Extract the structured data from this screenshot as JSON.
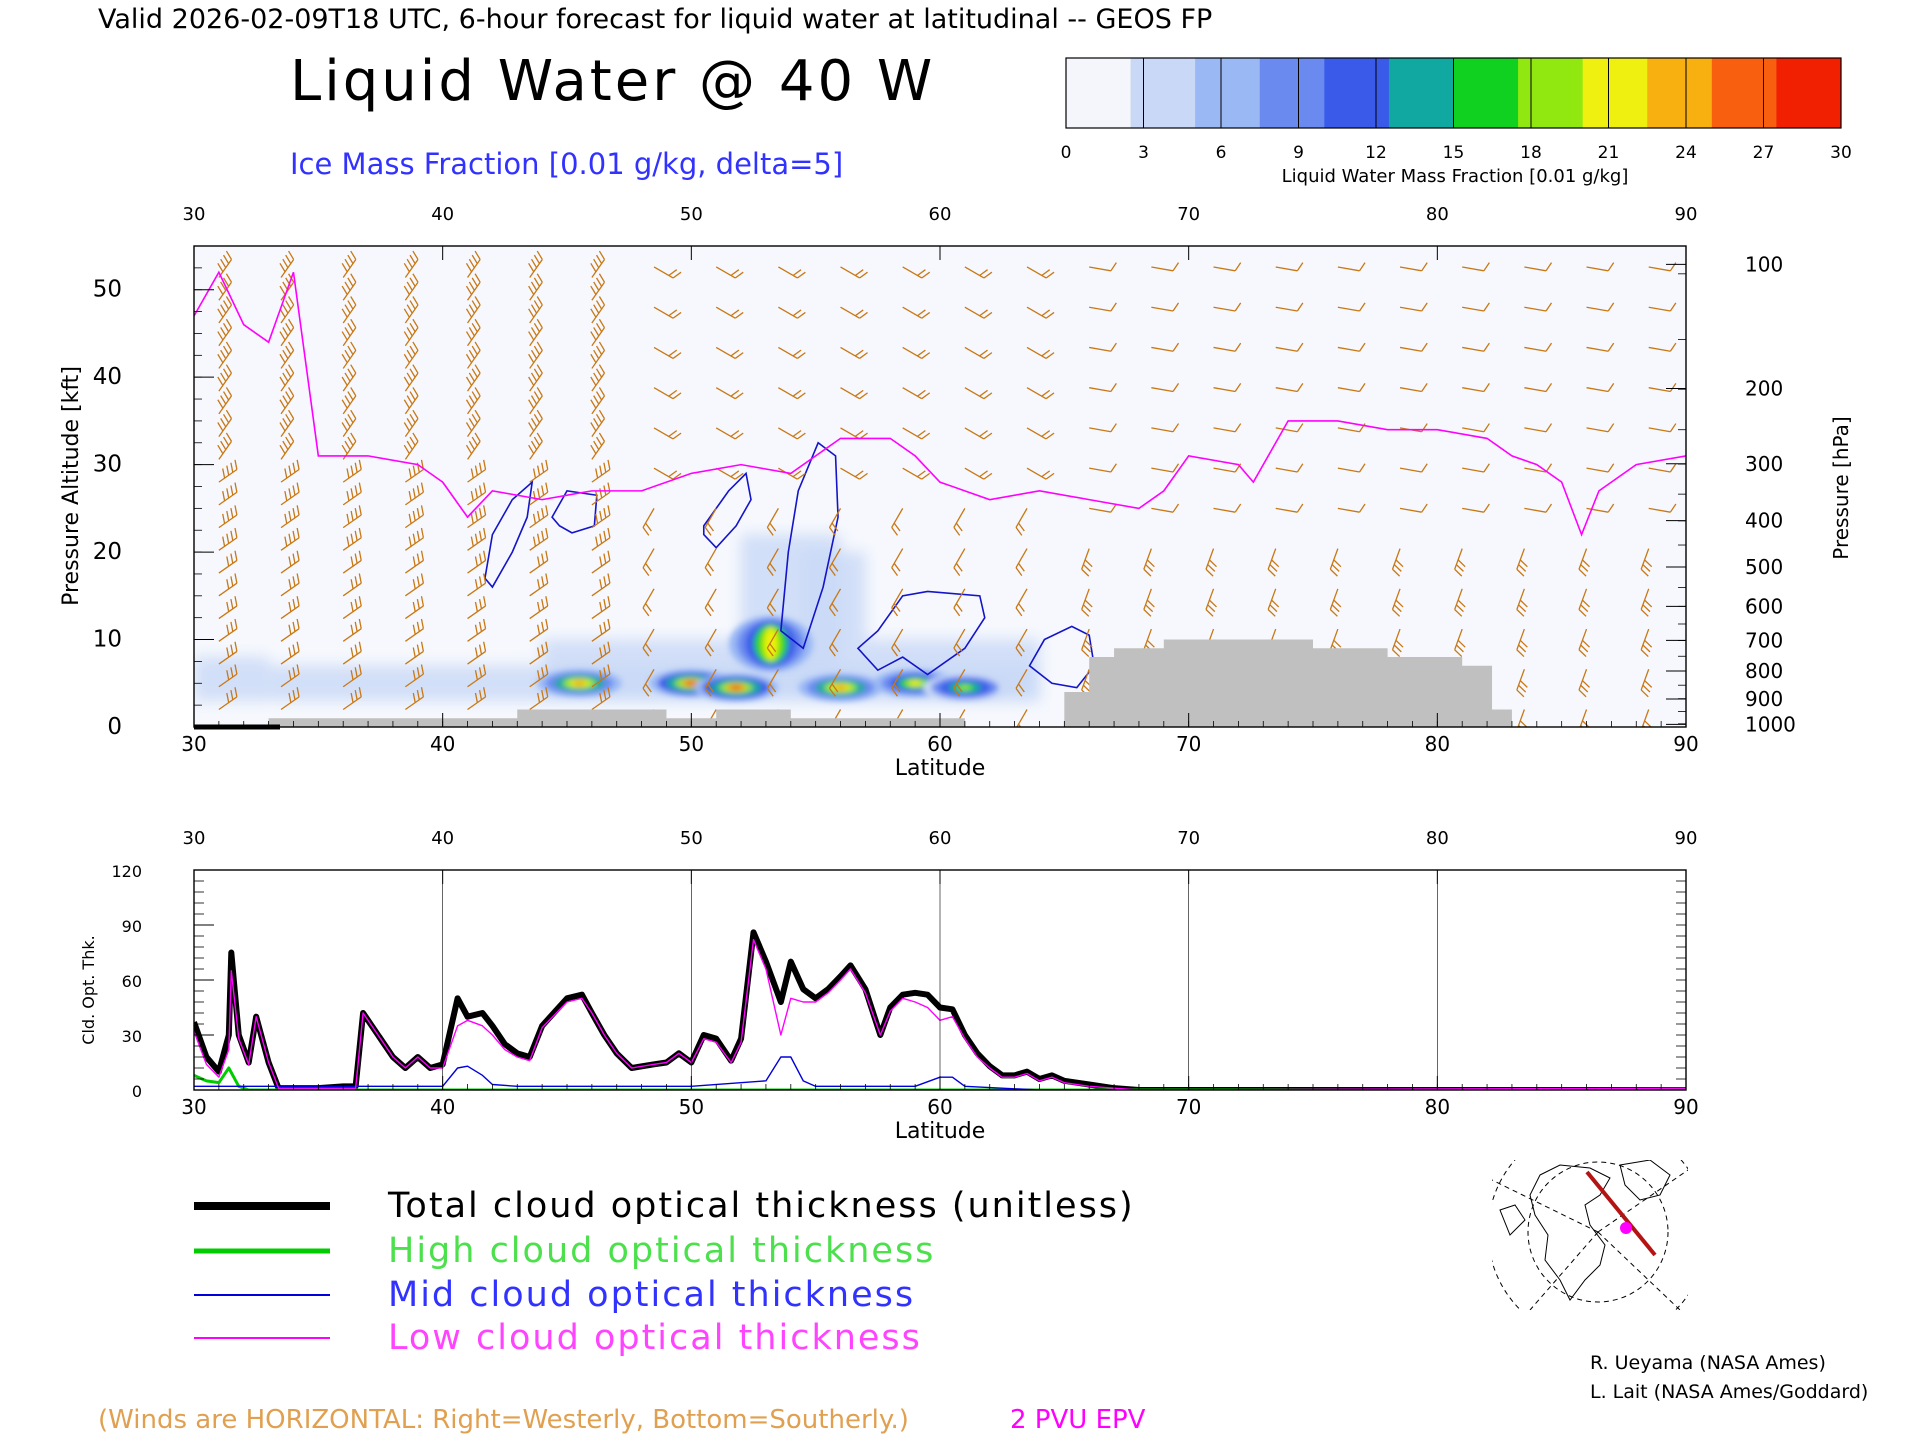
{
  "header": {
    "title": "Valid 2026-02-09T18 UTC, 6-hour forecast for liquid water at latitudinal -- GEOS FP",
    "main_title": "Liquid Water @ 40 W",
    "subtitle": "Ice Mass Fraction [0.01 g/kg, delta=5]"
  },
  "colorbar": {
    "ticks": [
      "0",
      "3",
      "6",
      "9",
      "12",
      "15",
      "18",
      "21",
      "24",
      "27",
      "30"
    ],
    "label": "Liquid Water Mass Fraction [0.01 g/kg]",
    "colors": [
      "#f4f6fc",
      "#c8d8f6",
      "#9ab8f4",
      "#6a8af0",
      "#3a5aea",
      "#10a8a0",
      "#10d020",
      "#90e810",
      "#f0f010",
      "#f8b010",
      "#f86010",
      "#f02000"
    ]
  },
  "chart_data": [
    {
      "type": "heatmap",
      "xlabel": "Latitude",
      "ylabel": "Pressure Altitude [kft]",
      "y2label": "Pressure [hPa]",
      "xlim": [
        30,
        90
      ],
      "ylim": [
        0,
        55
      ],
      "x_ticks": [
        "30",
        "40",
        "50",
        "60",
        "70",
        "80",
        "90"
      ],
      "y_ticks": [
        "0",
        "10",
        "20",
        "30",
        "40",
        "50"
      ],
      "y2_ticks": [
        "100",
        "200",
        "300",
        "400",
        "500",
        "600",
        "700",
        "800",
        "900",
        "1000"
      ],
      "y2_tick_kft": [
        52.9,
        38.7,
        30.1,
        23.6,
        18.3,
        13.8,
        9.9,
        6.4,
        3.2,
        0.3
      ],
      "high_liquid_water_blobs": [
        {
          "lat": 45.5,
          "kft": 5.0,
          "peak": 24
        },
        {
          "lat": 50.0,
          "kft": 5.0,
          "peak": 27
        },
        {
          "lat": 51.8,
          "kft": 4.5,
          "peak": 27
        },
        {
          "lat": 53.2,
          "kft": 9.5,
          "peak": 21
        },
        {
          "lat": 56.0,
          "kft": 4.5,
          "peak": 24
        },
        {
          "lat": 59.0,
          "kft": 5.0,
          "peak": 21
        },
        {
          "lat": 61.0,
          "kft": 4.5,
          "peak": 18
        }
      ],
      "epv_2pvu_kft": [
        [
          30,
          47
        ],
        [
          31,
          52
        ],
        [
          32,
          46
        ],
        [
          33,
          44
        ],
        [
          34,
          52
        ],
        [
          35,
          31
        ],
        [
          37,
          31
        ],
        [
          39,
          30
        ],
        [
          40,
          28
        ],
        [
          41,
          24
        ],
        [
          42,
          27
        ],
        [
          44,
          26
        ],
        [
          46,
          27
        ],
        [
          48,
          27
        ],
        [
          50,
          29
        ],
        [
          52,
          30
        ],
        [
          54,
          29
        ],
        [
          56,
          33
        ],
        [
          58,
          33
        ],
        [
          59,
          31
        ],
        [
          60,
          28
        ],
        [
          62,
          26
        ],
        [
          64,
          27
        ],
        [
          66,
          26
        ],
        [
          68,
          25
        ],
        [
          69,
          27
        ],
        [
          70,
          31
        ],
        [
          72,
          30
        ],
        [
          72.6,
          28
        ],
        [
          74,
          35
        ],
        [
          76,
          35
        ],
        [
          78,
          34
        ],
        [
          80,
          34
        ],
        [
          82,
          33
        ],
        [
          83,
          31
        ],
        [
          84,
          30
        ],
        [
          85,
          28
        ],
        [
          85.8,
          22
        ],
        [
          86.5,
          27
        ],
        [
          88,
          30
        ],
        [
          90,
          31
        ]
      ],
      "terrain_kft": [
        [
          30,
          0
        ],
        [
          33,
          0
        ],
        [
          33,
          1
        ],
        [
          43,
          1
        ],
        [
          43,
          2
        ],
        [
          49,
          2
        ],
        [
          49,
          1
        ],
        [
          51,
          1
        ],
        [
          51,
          2
        ],
        [
          54,
          2
        ],
        [
          54,
          1
        ],
        [
          61,
          1
        ],
        [
          61,
          0
        ],
        [
          65,
          0
        ],
        [
          65,
          4
        ],
        [
          66,
          4
        ],
        [
          66,
          8
        ],
        [
          67,
          8
        ],
        [
          67,
          9
        ],
        [
          69,
          9
        ],
        [
          69,
          10
        ],
        [
          75,
          10
        ],
        [
          75,
          9
        ],
        [
          78,
          9
        ],
        [
          78,
          8
        ],
        [
          81,
          8
        ],
        [
          81,
          7
        ],
        [
          82.2,
          7
        ],
        [
          82.2,
          2
        ],
        [
          83,
          2
        ],
        [
          83,
          0
        ],
        [
          90,
          0
        ]
      ]
    },
    {
      "type": "line",
      "xlabel": "Latitude",
      "ylabel": "Cld. Opt. Thk.",
      "xlim": [
        30,
        90
      ],
      "ylim": [
        0,
        120
      ],
      "x_ticks": [
        "30",
        "40",
        "50",
        "60",
        "70",
        "80",
        "90"
      ],
      "y_ticks": [
        "0",
        "30",
        "60",
        "90",
        "120"
      ],
      "series": [
        {
          "name": "Total cloud optical thickness (unitless)",
          "color": "#000000",
          "points": [
            [
              30,
              37
            ],
            [
              30.5,
              18
            ],
            [
              31,
              10
            ],
            [
              31.4,
              30
            ],
            [
              31.5,
              75
            ],
            [
              31.8,
              30
            ],
            [
              32.2,
              15
            ],
            [
              32.5,
              40
            ],
            [
              33,
              15
            ],
            [
              33.4,
              1
            ],
            [
              35,
              1
            ],
            [
              36,
              2
            ],
            [
              36.5,
              2
            ],
            [
              36.8,
              42
            ],
            [
              37.4,
              30
            ],
            [
              38,
              18
            ],
            [
              38.5,
              12
            ],
            [
              39,
              18
            ],
            [
              39.5,
              12
            ],
            [
              40,
              14
            ],
            [
              40.6,
              50
            ],
            [
              41,
              40
            ],
            [
              41.6,
              42
            ],
            [
              42,
              35
            ],
            [
              42.5,
              25
            ],
            [
              43,
              20
            ],
            [
              43.5,
              18
            ],
            [
              44,
              35
            ],
            [
              45,
              50
            ],
            [
              45.6,
              52
            ],
            [
              46,
              42
            ],
            [
              46.5,
              30
            ],
            [
              47,
              20
            ],
            [
              47.6,
              12
            ],
            [
              48.5,
              14
            ],
            [
              49,
              15
            ],
            [
              49.5,
              20
            ],
            [
              50,
              15
            ],
            [
              50.5,
              30
            ],
            [
              51,
              28
            ],
            [
              51.6,
              16
            ],
            [
              52,
              28
            ],
            [
              52.5,
              86
            ],
            [
              53,
              70
            ],
            [
              53.6,
              48
            ],
            [
              54,
              70
            ],
            [
              54.5,
              55
            ],
            [
              55,
              50
            ],
            [
              55.5,
              55
            ],
            [
              56,
              62
            ],
            [
              56.4,
              68
            ],
            [
              57,
              55
            ],
            [
              57.6,
              30
            ],
            [
              58,
              45
            ],
            [
              58.5,
              52
            ],
            [
              59,
              53
            ],
            [
              59.5,
              52
            ],
            [
              60,
              45
            ],
            [
              60.5,
              44
            ],
            [
              61,
              30
            ],
            [
              61.5,
              20
            ],
            [
              62,
              13
            ],
            [
              62.5,
              8
            ],
            [
              63,
              8
            ],
            [
              63.5,
              10
            ],
            [
              64,
              6
            ],
            [
              64.5,
              8
            ],
            [
              65,
              5
            ],
            [
              66,
              3
            ],
            [
              67,
              1
            ],
            [
              68,
              0
            ],
            [
              90,
              0
            ]
          ]
        },
        {
          "name": "High cloud optical thickness",
          "color": "#00cc00",
          "points": [
            [
              30,
              8
            ],
            [
              30.5,
              5
            ],
            [
              31,
              4
            ],
            [
              31.4,
              12
            ],
            [
              31.8,
              2
            ],
            [
              32.2,
              0
            ],
            [
              40,
              0
            ],
            [
              60,
              0
            ],
            [
              90,
              0
            ]
          ]
        },
        {
          "name": "Mid cloud optical thickness",
          "color": "#0000dd",
          "points": [
            [
              30,
              2
            ],
            [
              40,
              2
            ],
            [
              40.6,
              12
            ],
            [
              41,
              13
            ],
            [
              41.6,
              8
            ],
            [
              42,
              3
            ],
            [
              43,
              2
            ],
            [
              50,
              2
            ],
            [
              53,
              5
            ],
            [
              53.6,
              18
            ],
            [
              54,
              18
            ],
            [
              54.5,
              5
            ],
            [
              55,
              2
            ],
            [
              59,
              2
            ],
            [
              60,
              7
            ],
            [
              60.5,
              7
            ],
            [
              61,
              2
            ],
            [
              64,
              0
            ],
            [
              90,
              0
            ]
          ]
        },
        {
          "name": "Low cloud optical thickness",
          "color": "#ff00ff",
          "points": [
            [
              30,
              32
            ],
            [
              30.5,
              14
            ],
            [
              31,
              7
            ],
            [
              31.4,
              22
            ],
            [
              31.5,
              65
            ],
            [
              31.8,
              28
            ],
            [
              32.2,
              14
            ],
            [
              32.5,
              40
            ],
            [
              33,
              15
            ],
            [
              33.4,
              1
            ],
            [
              36.5,
              1
            ],
            [
              36.8,
              42
            ],
            [
              37.4,
              30
            ],
            [
              38,
              18
            ],
            [
              38.5,
              12
            ],
            [
              39,
              18
            ],
            [
              39.5,
              12
            ],
            [
              40,
              12
            ],
            [
              40.6,
              35
            ],
            [
              41,
              38
            ],
            [
              41.6,
              35
            ],
            [
              42,
              30
            ],
            [
              42.5,
              22
            ],
            [
              43,
              18
            ],
            [
              43.5,
              16
            ],
            [
              44,
              34
            ],
            [
              45,
              48
            ],
            [
              45.6,
              50
            ],
            [
              46,
              42
            ],
            [
              46.5,
              30
            ],
            [
              47,
              20
            ],
            [
              47.6,
              12
            ],
            [
              48.5,
              14
            ],
            [
              49,
              15
            ],
            [
              49.5,
              20
            ],
            [
              50,
              15
            ],
            [
              50.5,
              28
            ],
            [
              51,
              26
            ],
            [
              51.6,
              15
            ],
            [
              52,
              26
            ],
            [
              52.5,
              82
            ],
            [
              53,
              66
            ],
            [
              53.6,
              30
            ],
            [
              54,
              50
            ],
            [
              54.5,
              48
            ],
            [
              55,
              48
            ],
            [
              55.5,
              53
            ],
            [
              56,
              60
            ],
            [
              56.4,
              66
            ],
            [
              57,
              53
            ],
            [
              57.6,
              30
            ],
            [
              58,
              43
            ],
            [
              58.5,
              50
            ],
            [
              59,
              48
            ],
            [
              59.5,
              45
            ],
            [
              60,
              38
            ],
            [
              60.5,
              40
            ],
            [
              61,
              28
            ],
            [
              61.5,
              18
            ],
            [
              62,
              12
            ],
            [
              62.5,
              7
            ],
            [
              63,
              7
            ],
            [
              63.5,
              9
            ],
            [
              64,
              5
            ],
            [
              64.5,
              7
            ],
            [
              65,
              4
            ],
            [
              66,
              2
            ],
            [
              67,
              1
            ],
            [
              68,
              0
            ],
            [
              90,
              1
            ]
          ]
        }
      ]
    }
  ],
  "legend": {
    "total": "Total cloud optical thickness (unitless)",
    "high": "High cloud optical thickness",
    "mid": "Mid cloud optical thickness",
    "low": "Low cloud optical thickness"
  },
  "credits": {
    "line1": "R. Ueyama (NASA Ames)",
    "line2": "L. Lait (NASA Ames/Goddard)"
  },
  "footer": {
    "winds_note": "(Winds are HORIZONTAL: Right=Westerly, Bottom=Southerly.)",
    "epv_note": "2 PVU EPV"
  },
  "colors": {
    "wind_barb": "#c87814",
    "epv_line": "#ff00ff",
    "ice_contour": "#1414c8",
    "terrain": "#c0c0c0",
    "subtitle": "#3232ff",
    "winds_note": "#e0a050",
    "epv_note": "#ff00ff",
    "map_track": "#b41414",
    "map_dot": "#ff00ff"
  }
}
